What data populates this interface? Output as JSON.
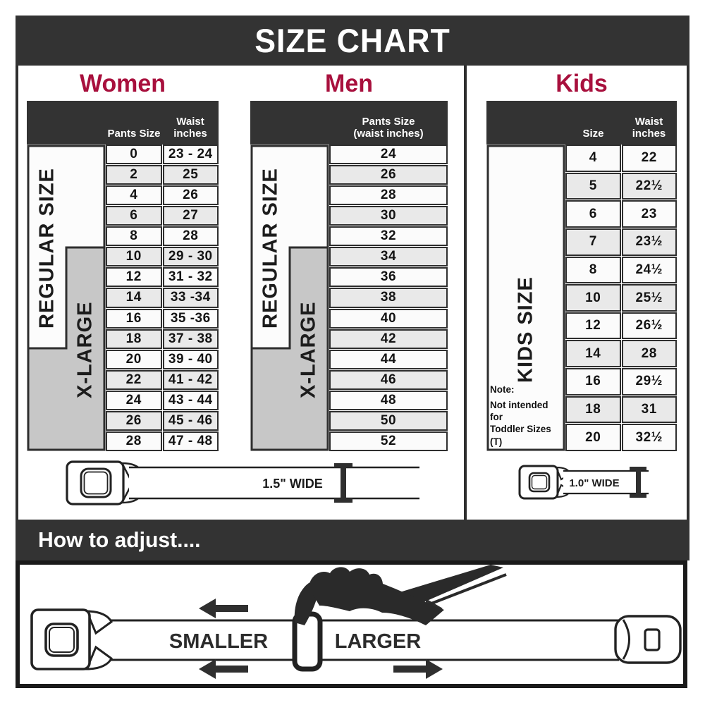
{
  "title": "SIZE CHART",
  "colors": {
    "accent": "#a8103d",
    "dark_bar": "#333333",
    "border": "#2e2e2e",
    "row": "#fbfbfb",
    "row_alt": "#e9e9e9",
    "band_gray": "#c7c7c7"
  },
  "women": {
    "heading": "Women",
    "header": {
      "pants": "Pants Size",
      "waist_line1": "Waist",
      "waist_line2": "inches"
    },
    "regular_label": "REGULAR SIZE",
    "xlarge_label": "X-LARGE",
    "rows": [
      [
        "0",
        "23 - 24"
      ],
      [
        "2",
        "25"
      ],
      [
        "4",
        "26"
      ],
      [
        "6",
        "27"
      ],
      [
        "8",
        "28"
      ],
      [
        "10",
        "29 - 30"
      ],
      [
        "12",
        "31 - 32"
      ],
      [
        "14",
        "33 -34"
      ],
      [
        "16",
        "35 -36"
      ],
      [
        "18",
        "37 - 38"
      ],
      [
        "20",
        "39 - 40"
      ],
      [
        "22",
        "41 - 42"
      ],
      [
        "24",
        "43 - 44"
      ],
      [
        "26",
        "45 - 46"
      ],
      [
        "28",
        "47 - 48"
      ]
    ]
  },
  "men": {
    "heading": "Men",
    "header": {
      "line1": "Pants Size",
      "line2": "(waist inches)"
    },
    "regular_label": "REGULAR SIZE",
    "xlarge_label": "X-LARGE",
    "rows": [
      "24",
      "26",
      "28",
      "30",
      "32",
      "34",
      "36",
      "38",
      "40",
      "42",
      "44",
      "46",
      "48",
      "50",
      "52"
    ]
  },
  "kids": {
    "heading": "Kids",
    "header": {
      "size": "Size",
      "waist_line1": "Waist",
      "waist_line2": "inches"
    },
    "band_label": "KIDS SIZE",
    "note_line1": "Note:",
    "note_line2": "Not intended for",
    "note_line3": "Toddler Sizes (T)",
    "rows": [
      [
        "4",
        "22"
      ],
      [
        "5",
        "22½"
      ],
      [
        "6",
        "23"
      ],
      [
        "7",
        "23½"
      ],
      [
        "8",
        "24½"
      ],
      [
        "10",
        "25½"
      ],
      [
        "12",
        "26½"
      ],
      [
        "14",
        "28"
      ],
      [
        "16",
        "29½"
      ],
      [
        "18",
        "31"
      ],
      [
        "20",
        "32½"
      ]
    ]
  },
  "belts": {
    "adult_label": "1.5\" WIDE",
    "kids_label": "1.0\" WIDE"
  },
  "adjust": {
    "heading": "How to adjust....",
    "smaller": "SMALLER",
    "larger": "LARGER"
  }
}
